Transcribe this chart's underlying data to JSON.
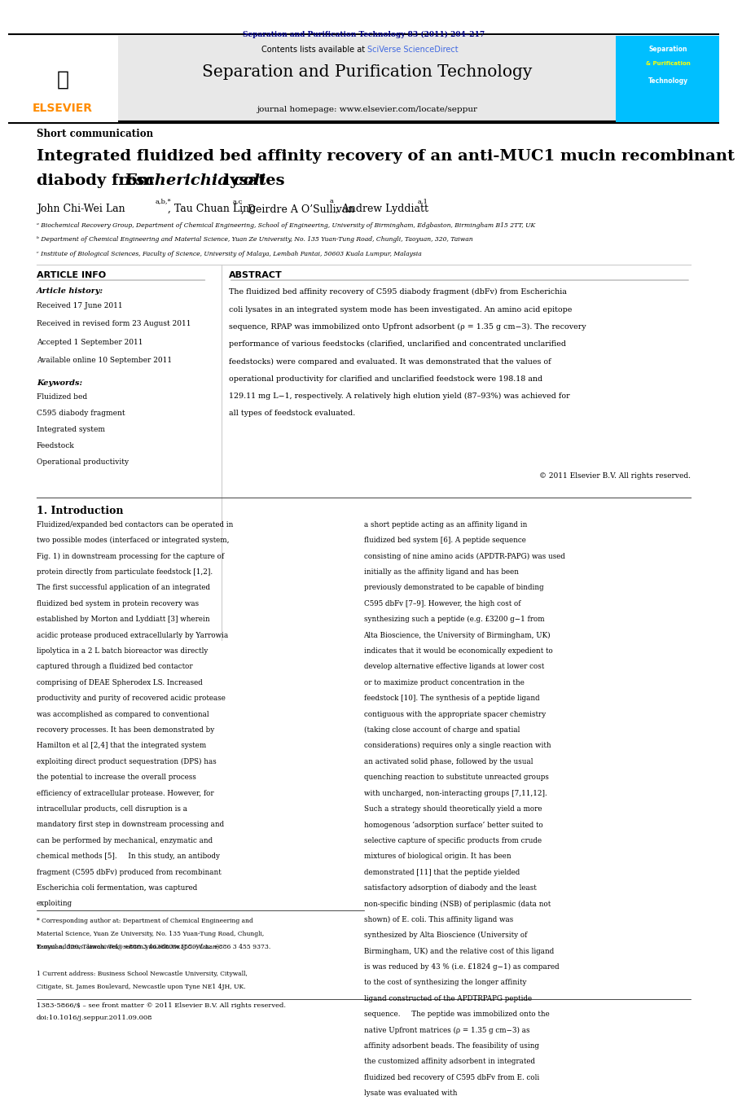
{
  "page_width": 9.92,
  "page_height": 13.23,
  "background_color": "#ffffff",
  "top_journal_line": "Separation and Purification Technology 83 (2011) 204–217",
  "top_journal_line_color": "#00008B",
  "header_bg_color": "#e8e8e8",
  "header_border_color": "#000000",
  "journal_title": "Separation and Purification Technology",
  "journal_homepage": "journal homepage: www.elsevier.com/locate/seppur",
  "sciverse_text": "Contents lists available at ",
  "sciverse_link": "SciVerse ScienceDirect",
  "sciverse_link_color": "#4169E1",
  "elsevier_color": "#FF8C00",
  "article_type": "Short communication",
  "paper_title_line1": "Integrated fluidized bed affinity recovery of an anti-MUC1 mucin recombinant",
  "paper_title_line2": "diabody from ",
  "paper_title_italic": "Escherichia coli",
  "paper_title_end": " lysates",
  "authors": "John Chi-Wei Lan",
  "authors_super1": "a,b,*",
  "author2": ", Tau Chuan Ling",
  "author2_super": "a,c",
  "author3": ", Deirdre A O’Sullivan",
  "author3_super": "a",
  "author4": ", Andrew Lyddiatt",
  "author4_super": "a,1",
  "affil_a": "ᵃ Biochemical Recovery Group, Department of Chemical Engineering, School of Engineering, University of Birmingham, Edgbaston, Birmingham B15 2TT, UK",
  "affil_b": "ᵇ Department of Chemical Engineering and Material Science, Yuan Ze University, No. 135 Yuan-Tung Road, Chungli, Taoyuan, 320, Taiwan",
  "affil_c": "ᶜ Institute of Biological Sciences, Faculty of Science, University of Malaya, Lembah Pantai, 50603 Kuala Lumpur, Malaysia",
  "article_info_title": "ARTICLE INFO",
  "article_history_title": "Article history:",
  "received1": "Received 17 June 2011",
  "received2": "Received in revised form 23 August 2011",
  "accepted": "Accepted 1 September 2011",
  "available": "Available online 10 September 2011",
  "keywords_title": "Keywords:",
  "keyword1": "Fluidized bed",
  "keyword2": "C595 diabody fragment",
  "keyword3": "Integrated system",
  "keyword4": "Feedstock",
  "keyword5": "Operational productivity",
  "abstract_title": "ABSTRACT",
  "abstract_text": "The fluidized bed affinity recovery of C595 diabody fragment (dbFv) from Escherichia coli lysates in an integrated system mode has been investigated. An amino acid epitope sequence, RPAP was immobilized onto Upfront adsorbent (ρ = 1.35 g cm−3). The recovery performance of various feedstocks (clarified, unclarified and concentrated unclarified feedstocks) were compared and evaluated. It was demonstrated that the values of operational productivity for clarified and unclarified feedstock were 198.18 and 129.11 mg L−1, respectively. A relatively high elution yield (87–93%) was achieved for all types of feedstock evaluated.",
  "copyright": "© 2011 Elsevier B.V. All rights reserved.",
  "intro_title": "1. Introduction",
  "intro_col1": "Fluidized/expanded bed contactors can be operated in two possible modes (interfaced or integrated system, Fig. 1) in downstream processing for the capture of protein directly from particulate feedstock [1,2]. The first successful application of an integrated fluidized bed system in protein recovery was established by Morton and Lyddiatt [3] wherein acidic protease produced extracellularly by Yarrowia lipolytica in a 2 L batch bioreactor was directly captured through a fluidized bed contactor comprising of DEAE Spherodex LS. Increased productivity and purity of recovered acidic protease was accomplished as compared to conventional recovery processes. It has been demonstrated by Hamilton et al [2,4] that the integrated system exploiting direct product sequestration (DPS) has the potential to increase the overall process efficiency of extracellular protease. However, for intracellular products, cell disruption is a mandatory first step in downstream processing and can be performed by mechanical, enzymatic and chemical methods [5].\n    In this study, an antibody fragment (C595 dbFv) produced from recombinant Escherichia coli fermentation, was captured exploiting",
  "intro_col2": "a short peptide acting as an affinity ligand in fluidized bed system [6]. A peptide sequence consisting of nine amino acids (APDTR-PAPG) was used initially as the affinity ligand and has been previously demonstrated to be capable of binding C595 dbFv [7–9]. However, the high cost of synthesizing such a peptide (e.g. £3200 g−1 from Alta Bioscience, the University of Birmingham, UK) indicates that it would be economically expedient to develop alternative effective ligands at lower cost or to maximize product concentration in the feedstock [10]. The synthesis of a peptide ligand contiguous with the appropriate spacer chemistry (taking close account of charge and spatial considerations) requires only a single reaction with an activated solid phase, followed by the usual quenching reaction to substitute unreacted groups with uncharged, non-interacting groups [7,11,12]. Such a strategy should theoretically yield a more homogenous ‘adsorption surface’ better suited to selective capture of specific products from crude mixtures of biological origin. It has been demonstrated [11] that the peptide yielded satisfactory adsorption of diabody and the least non-specific binding (NSB) of periplasmic (data not shown) of E. coli. This affinity ligand was synthesized by Alta Bioscience (University of Birmingham, UK) and the relative cost of this ligand is was reduced by 43 % (i.e. £1824 g−1) as compared to the cost of synthesizing the longer affinity ligand constructed of the APDTRPAPG peptide sequence.\n    The peptide was immobilized onto the native Upfront matrices (ρ = 1.35 g cm−3) as affinity adsorbent beads. The feasibility of using the customized affinity adsorbent in integrated fluidized bed recovery of C595 dbFv from E. coli lysate was evaluated with",
  "footnote_star": "* Corresponding author at: Department of Chemical Engineering and Material Science, Yuan Ze University, No. 135 Yuan-Tung Road, Chungli, Taoyuan, 320, Taiwan. Tel.: +886 3 4638800x3550; fax: +886 3 455 9373.",
  "footnote_email": "E-mail address: lanchiwei@saturn.yzu.edu.tw (J.C.-W. Lan).",
  "footnote_1": "1 Current address: Business School Newcastle University, Citywall, Citigate, St. James Boulevard, Newcastle upon Tyne NE1 4JH, UK.",
  "bottom_line1": "1383-5866/$ – see front matter © 2011 Elsevier B.V. All rights reserved.",
  "bottom_line2": "doi:10.1016/j.seppur.2011.09.008",
  "journal_cover_bg": "#00BFFF",
  "journal_cover_text1": "Separation",
  "journal_cover_text2": "& Purification",
  "journal_cover_text3": "Technology"
}
